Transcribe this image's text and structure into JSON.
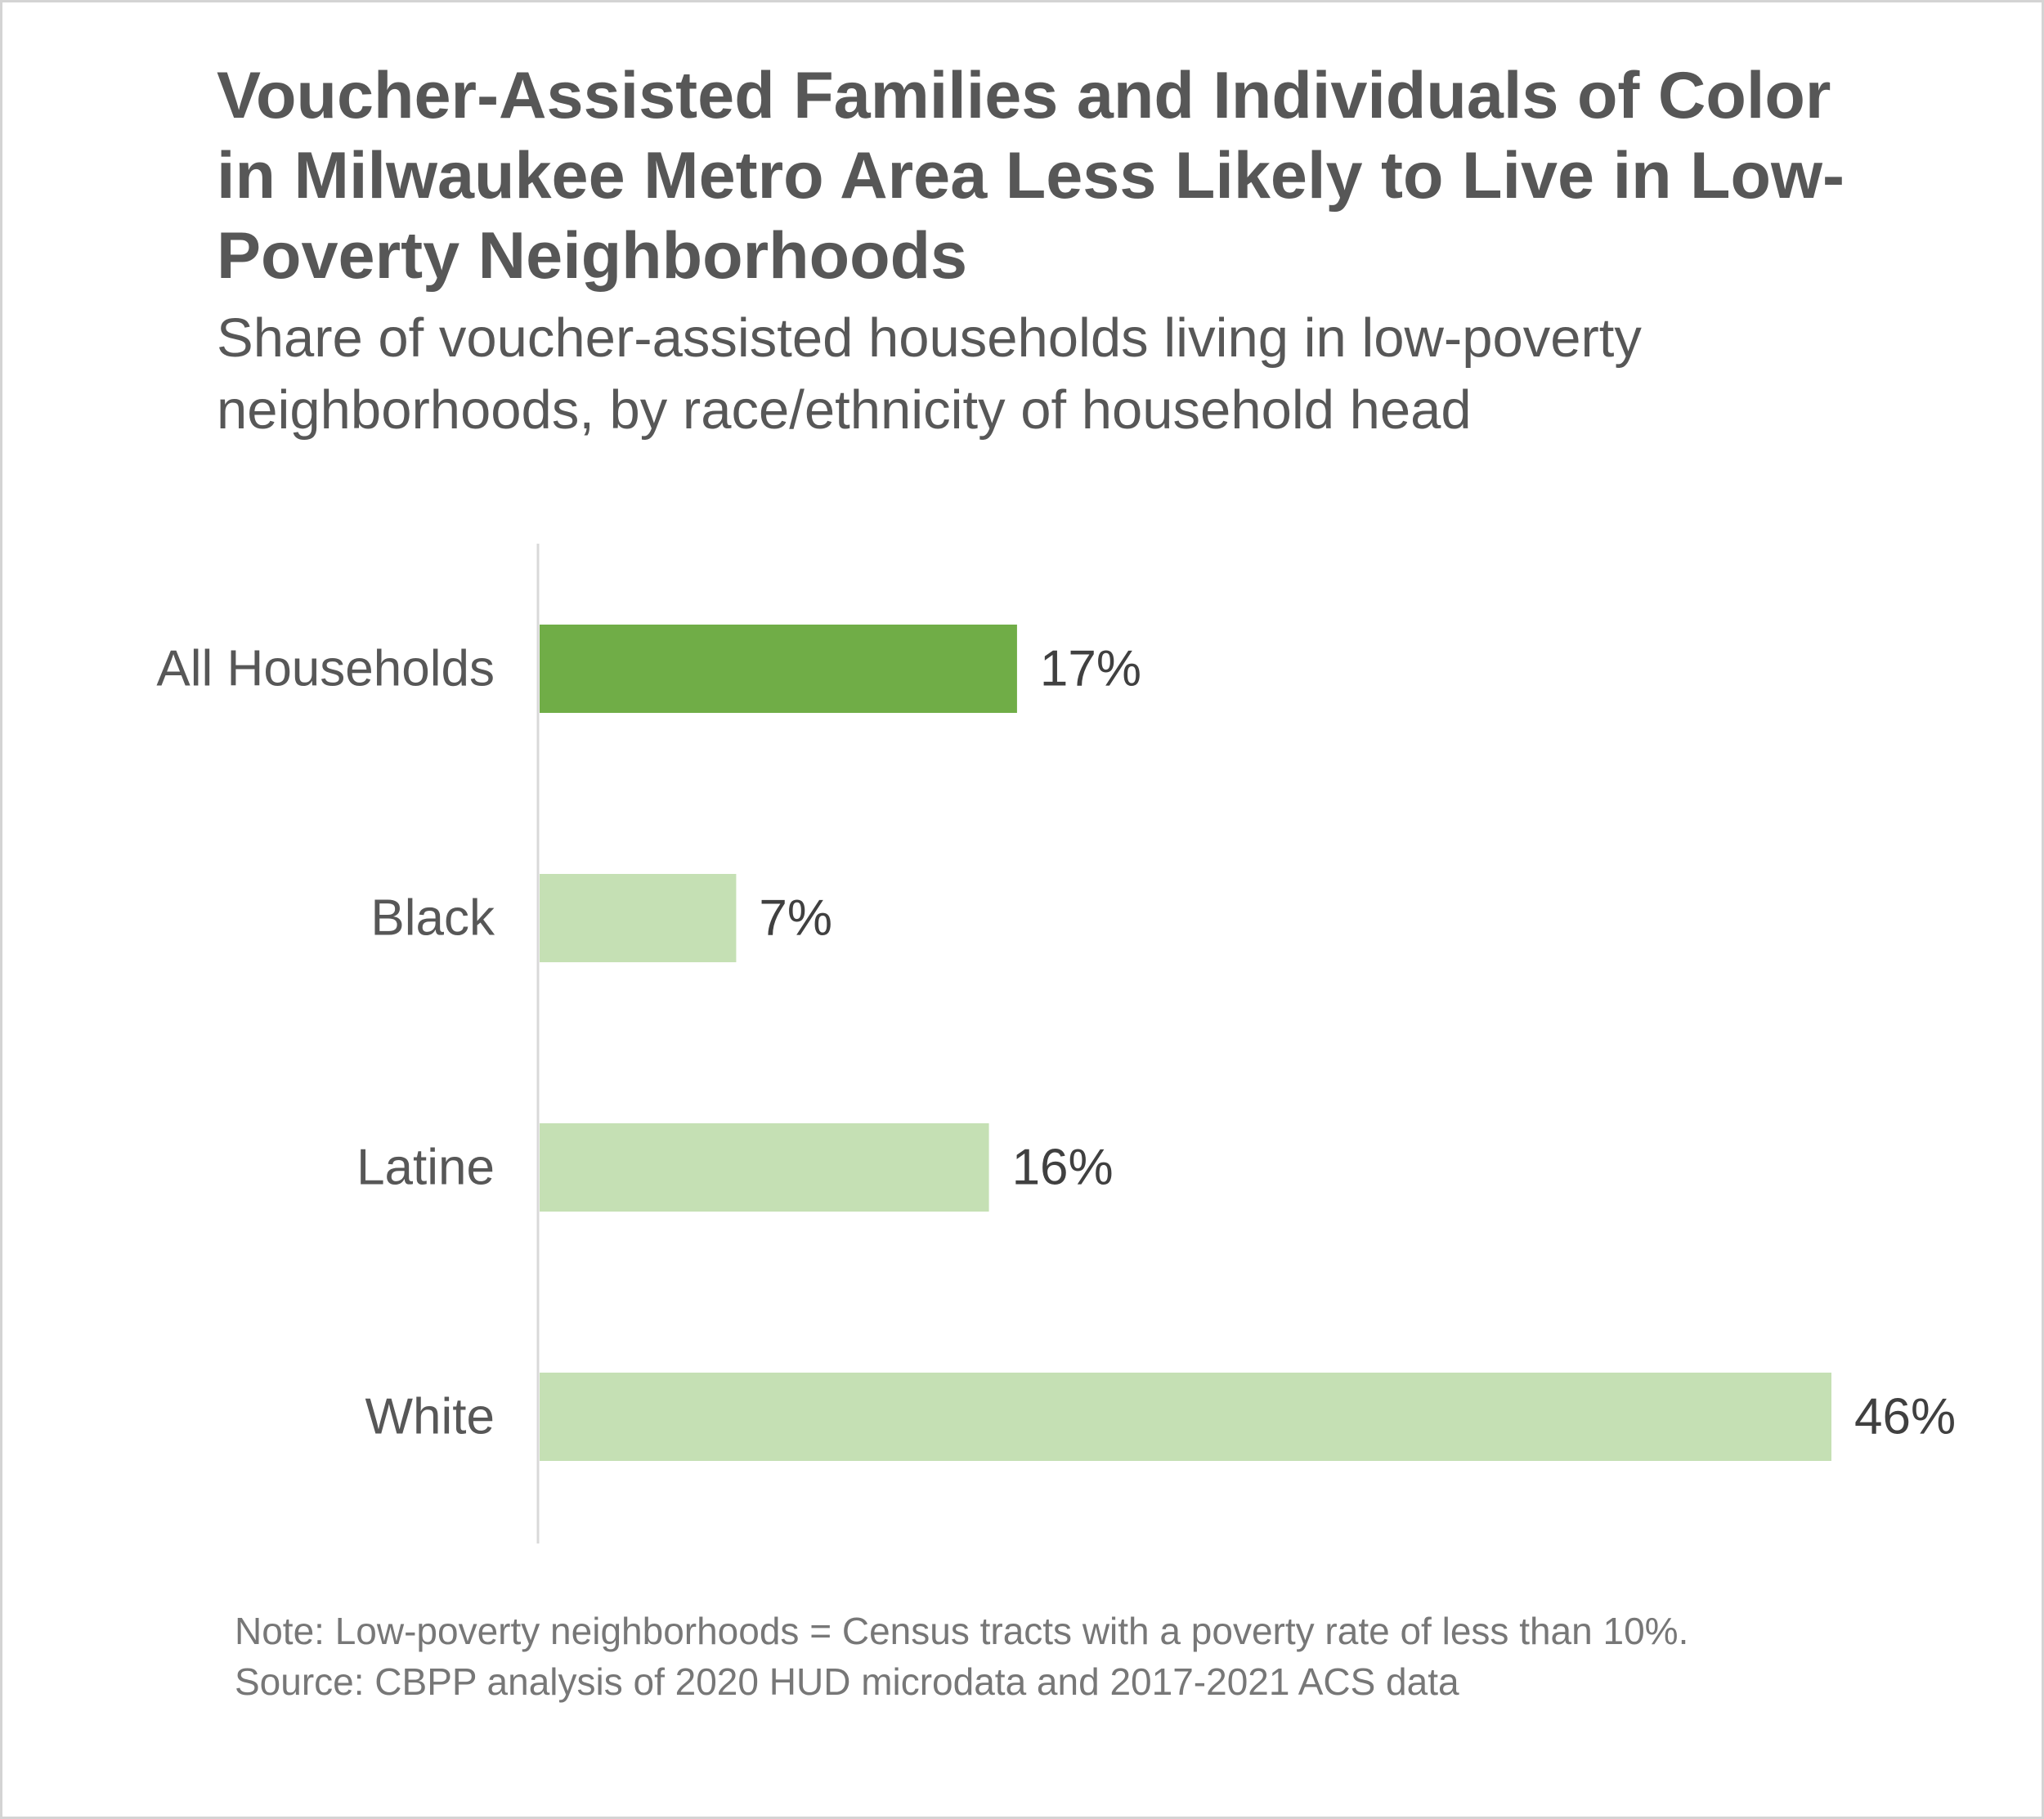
{
  "title": "Voucher-Assisted Families and Individuals of Color in Milwaukee Metro Area Less Likely to Live in Low-Poverty Neighborhoods",
  "subtitle": "Share of voucher-assisted households living in low-poverty neighborhoods, by race/ethnicity of household head",
  "note": "Note: Low-poverty neighborhoods = Census tracts with a poverty rate of less than 10%.",
  "source": "Source: CBPP analysis of 2020 HUD microdata and 2017-2021 ACS data",
  "colors": {
    "highlight": "#70ad47",
    "default": "#c5e0b4",
    "axis": "#d9d9d9",
    "label_text": "#575757",
    "value_text": "#404040"
  },
  "chart_data": {
    "type": "bar",
    "orientation": "horizontal",
    "title": "Voucher-Assisted Families and Individuals of Color in Milwaukee Metro Area Less Likely to Live in Low-Poverty Neighborhoods",
    "subtitle": "Share of voucher-assisted households living in low-poverty neighborhoods, by race/ethnicity of household head",
    "categories": [
      "All Households",
      "Black",
      "Latine",
      "White"
    ],
    "values": [
      17,
      7,
      16,
      46
    ],
    "value_labels": [
      "17%",
      "7%",
      "16%",
      "46%"
    ],
    "highlight": [
      true,
      false,
      false,
      false
    ],
    "xlabel": "",
    "ylabel": "",
    "xlim": [
      0,
      46
    ],
    "grid": false,
    "legend": "none"
  }
}
